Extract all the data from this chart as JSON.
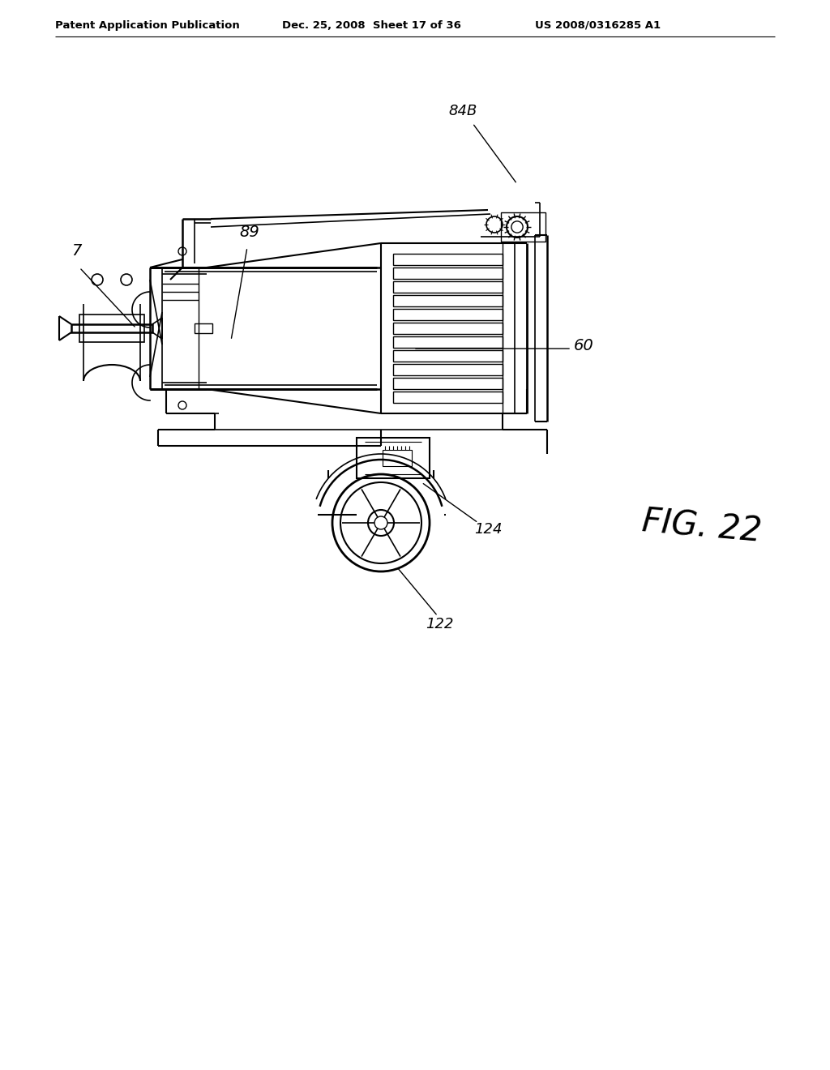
{
  "title_left": "Patent Application Publication",
  "title_mid": "Dec. 25, 2008  Sheet 17 of 36",
  "title_right": "US 2008/0316285 A1",
  "fig_label": "FIG. 22",
  "background_color": "#ffffff",
  "line_color": "#000000",
  "label_84B": "84B",
  "label_7": "7",
  "label_60": "60",
  "label_89": "89",
  "label_124": "124",
  "label_122": "122"
}
